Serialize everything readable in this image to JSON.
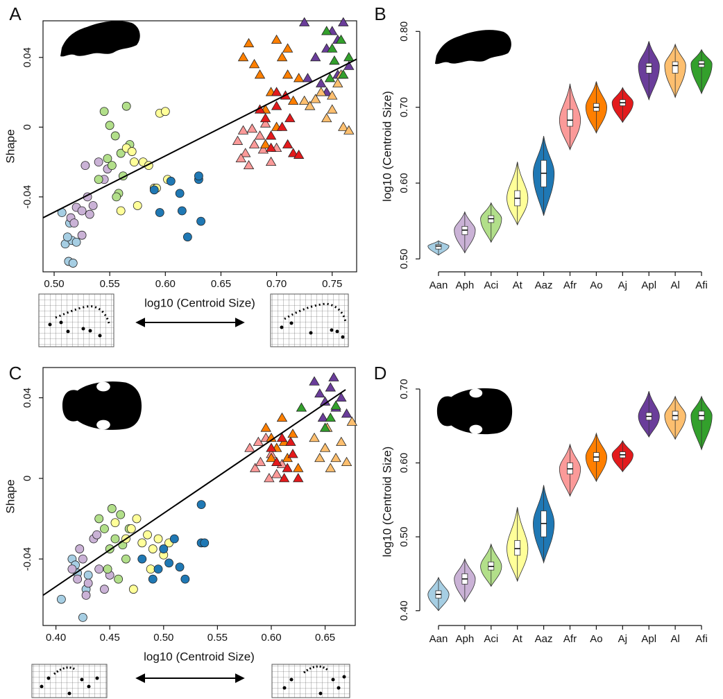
{
  "chart_data": [
    {
      "type": "scatter",
      "label": "A",
      "x_label": "log10 (Centroid Size)",
      "y_label": "Shape",
      "xlim": [
        0.49,
        0.772
      ],
      "ylim": [
        -0.083,
        0.061
      ],
      "xticks": [
        {
          "value": 0.5,
          "label": "0.50"
        },
        {
          "value": 0.55,
          "label": "0.55"
        },
        {
          "value": 0.6,
          "label": "0.60"
        },
        {
          "value": 0.65,
          "label": "0.65"
        },
        {
          "value": 0.7,
          "label": "0.70"
        },
        {
          "value": 0.75,
          "label": "0.75"
        }
      ],
      "yticks": [
        -0.04,
        0,
        0.04
      ],
      "trend_line": {
        "x": [
          0.49,
          0.772
        ],
        "y": [
          -0.052,
          0.039
        ]
      },
      "series": [
        {
          "color": "#a6cee3",
          "marker": "circle",
          "x": [
            0.507,
            0.51,
            0.514,
            0.516,
            0.513,
            0.517,
            0.52,
            0.512
          ],
          "y": [
            -0.049,
            -0.067,
            -0.055,
            -0.065,
            -0.077,
            -0.078,
            -0.066,
            -0.063
          ]
        },
        {
          "color": "#cab2d6",
          "marker": "circle",
          "x": [
            0.515,
            0.52,
            0.525,
            0.528,
            0.53,
            0.535,
            0.54,
            0.545,
            0.525,
            0.518,
            0.532,
            0.548
          ],
          "y": [
            -0.052,
            -0.046,
            -0.048,
            -0.022,
            -0.04,
            -0.045,
            -0.02,
            -0.03,
            -0.062,
            -0.055,
            -0.05,
            -0.024
          ]
        },
        {
          "color": "#b2df8a",
          "marker": "circle",
          "x": [
            0.545,
            0.55,
            0.555,
            0.56,
            0.565,
            0.548,
            0.552,
            0.558,
            0.54,
            0.556,
            0.568,
            0.562
          ],
          "y": [
            0.009,
            0.001,
            -0.005,
            -0.015,
            0.012,
            -0.018,
            -0.022,
            -0.038,
            -0.03,
            -0.04,
            -0.01,
            -0.028
          ]
        },
        {
          "color": "#ffff99",
          "marker": "circle",
          "x": [
            0.565,
            0.57,
            0.572,
            0.58,
            0.585,
            0.59,
            0.595,
            0.6,
            0.602,
            0.56,
            0.575,
            0.592
          ],
          "y": [
            -0.012,
            -0.014,
            -0.02,
            -0.02,
            -0.022,
            -0.035,
            0.008,
            0.009,
            -0.03,
            -0.048,
            -0.045,
            -0.035
          ]
        },
        {
          "color": "#1f78b4",
          "marker": "circle",
          "x": [
            0.59,
            0.595,
            0.605,
            0.613,
            0.62,
            0.63,
            0.63,
            0.632,
            0.615
          ],
          "y": [
            -0.036,
            -0.049,
            -0.031,
            -0.038,
            -0.063,
            -0.03,
            -0.028,
            -0.054,
            -0.048
          ]
        },
        {
          "color": "#fb9a99",
          "marker": "triangle",
          "x": [
            0.665,
            0.67,
            0.672,
            0.675,
            0.68,
            0.685,
            0.69,
            0.668,
            0.678,
            0.688,
            0.695,
            0.7
          ],
          "y": [
            -0.008,
            -0.002,
            -0.015,
            -0.022,
            -0.01,
            -0.005,
            0.002,
            -0.018,
            -0.001,
            -0.013,
            -0.02,
            -0.012
          ]
        },
        {
          "color": "#ff7f00",
          "marker": "triangle",
          "x": [
            0.67,
            0.675,
            0.68,
            0.685,
            0.69,
            0.695,
            0.7,
            0.705,
            0.71,
            0.715,
            0.72,
            0.69,
            0.7,
            0.71
          ],
          "y": [
            0.04,
            0.048,
            0.036,
            0.03,
            0.01,
            0.02,
            0.05,
            0.04,
            0.03,
            0.015,
            0.028,
            -0.01,
            0.0,
            0.045
          ]
        },
        {
          "color": "#e31a1c",
          "marker": "triangle",
          "x": [
            0.685,
            0.69,
            0.695,
            0.7,
            0.705,
            0.71,
            0.715,
            0.7,
            0.708,
            0.695,
            0.712,
            0.72
          ],
          "y": [
            0.01,
            0.005,
            -0.005,
            0.012,
            0.0,
            -0.01,
            -0.015,
            0.02,
            0.018,
            -0.012,
            0.005,
            -0.016
          ]
        },
        {
          "color": "#6a3d9a",
          "marker": "triangle",
          "x": [
            0.725,
            0.735,
            0.74,
            0.745,
            0.75,
            0.755,
            0.76,
            0.765,
            0.745,
            0.755,
            0.728
          ],
          "y": [
            0.06,
            0.04,
            0.025,
            0.045,
            0.055,
            0.03,
            0.06,
            0.035,
            0.02,
            0.05,
            0.028
          ]
        },
        {
          "color": "#fdbf6f",
          "marker": "triangle",
          "x": [
            0.725,
            0.73,
            0.74,
            0.745,
            0.75,
            0.755,
            0.76,
            0.765,
            0.735,
            0.75,
            0.758
          ],
          "y": [
            0.015,
            0.012,
            0.02,
            0.005,
            0.01,
            0.025,
            0.0,
            -0.002,
            0.016,
            0.018,
            0.03
          ]
        },
        {
          "color": "#33a02c",
          "marker": "triangle",
          "x": [
            0.745,
            0.75,
            0.752,
            0.758,
            0.76,
            0.748,
            0.765
          ],
          "y": [
            0.055,
            0.045,
            0.038,
            0.05,
            0.03,
            0.028,
            0.04
          ]
        }
      ]
    },
    {
      "type": "violin",
      "label": "B",
      "y_label": "log10 (Centroid Size)",
      "ylim": [
        0.483,
        0.814
      ],
      "yticks": [
        {
          "value": 0.5,
          "label": "0.50"
        },
        {
          "value": 0.6,
          "label": "0.60"
        },
        {
          "value": 0.7,
          "label": "0.70"
        },
        {
          "value": 0.8,
          "label": "0.80"
        }
      ],
      "categories": [
        "Aan",
        "Aph",
        "Aci",
        "At",
        "Aaz",
        "Afr",
        "Ao",
        "Aj",
        "Apl",
        "Al",
        "Afi"
      ],
      "colors": [
        "#a6cee3",
        "#cab2d6",
        "#b2df8a",
        "#ffff99",
        "#1f78b4",
        "#fb9a99",
        "#ff7f00",
        "#e31a1c",
        "#6a3d9a",
        "#fdbf6f",
        "#33a02c"
      ],
      "medians": [
        0.517,
        0.538,
        0.553,
        0.58,
        0.613,
        0.683,
        0.7,
        0.706,
        0.754,
        0.755,
        0.757
      ],
      "q1": [
        0.513,
        0.532,
        0.548,
        0.57,
        0.595,
        0.675,
        0.695,
        0.702,
        0.745,
        0.745,
        0.753
      ],
      "q3": [
        0.519,
        0.543,
        0.557,
        0.59,
        0.63,
        0.697,
        0.705,
        0.71,
        0.758,
        0.76,
        0.761
      ],
      "mins": [
        0.505,
        0.508,
        0.522,
        0.545,
        0.557,
        0.644,
        0.666,
        0.68,
        0.71,
        0.713,
        0.718
      ],
      "maxs": [
        0.524,
        0.562,
        0.574,
        0.628,
        0.662,
        0.731,
        0.734,
        0.726,
        0.787,
        0.783,
        0.776
      ]
    },
    {
      "type": "scatter",
      "label": "C",
      "x_label": "log10 (Centroid Size)",
      "y_label": "Shape",
      "xlim": [
        0.388,
        0.678
      ],
      "ylim": [
        -0.073,
        0.055
      ],
      "xticks": [
        {
          "value": 0.4,
          "label": "0.40"
        },
        {
          "value": 0.45,
          "label": "0.45"
        },
        {
          "value": 0.5,
          "label": "0.50"
        },
        {
          "value": 0.55,
          "label": "0.55"
        },
        {
          "value": 0.6,
          "label": "0.60"
        },
        {
          "value": 0.65,
          "label": "0.65"
        }
      ],
      "yticks": [
        -0.04,
        0,
        0.04
      ],
      "trend_line": {
        "x": [
          0.388,
          0.669
        ],
        "y": [
          -0.058,
          0.044
        ]
      },
      "series": [
        {
          "color": "#a6cee3",
          "marker": "circle",
          "x": [
            0.405,
            0.415,
            0.42,
            0.425,
            0.43,
            0.418,
            0.428
          ],
          "y": [
            -0.06,
            -0.04,
            -0.047,
            -0.069,
            -0.048,
            -0.043,
            -0.055
          ]
        },
        {
          "color": "#cab2d6",
          "marker": "circle",
          "x": [
            0.415,
            0.42,
            0.425,
            0.43,
            0.435,
            0.44,
            0.445,
            0.428,
            0.438,
            0.45,
            0.422
          ],
          "y": [
            -0.045,
            -0.05,
            -0.04,
            -0.052,
            -0.03,
            -0.045,
            -0.055,
            -0.058,
            -0.028,
            -0.048,
            -0.035
          ]
        },
        {
          "color": "#b2df8a",
          "marker": "circle",
          "x": [
            0.44,
            0.445,
            0.45,
            0.455,
            0.46,
            0.465,
            0.448,
            0.458,
            0.468,
            0.452,
            0.462
          ],
          "y": [
            -0.02,
            -0.025,
            -0.035,
            -0.03,
            -0.018,
            -0.04,
            -0.045,
            -0.05,
            -0.025,
            -0.015,
            -0.033
          ]
        },
        {
          "color": "#ffff99",
          "marker": "circle",
          "x": [
            0.455,
            0.465,
            0.47,
            0.475,
            0.48,
            0.485,
            0.49,
            0.495,
            0.5,
            0.505,
            0.472,
            0.488
          ],
          "y": [
            -0.022,
            -0.03,
            -0.025,
            -0.02,
            -0.032,
            -0.028,
            -0.035,
            -0.03,
            -0.038,
            -0.032,
            -0.055,
            -0.045
          ]
        },
        {
          "color": "#1f78b4",
          "marker": "circle",
          "x": [
            0.48,
            0.49,
            0.495,
            0.5,
            0.505,
            0.51,
            0.515,
            0.52,
            0.535,
            0.538,
            0.535
          ],
          "y": [
            -0.04,
            -0.05,
            -0.045,
            -0.035,
            -0.042,
            -0.03,
            -0.044,
            -0.05,
            -0.032,
            -0.032,
            -0.013
          ]
        },
        {
          "color": "#fb9a99",
          "marker": "triangle",
          "x": [
            0.58,
            0.585,
            0.59,
            0.595,
            0.6,
            0.605,
            0.588,
            0.598,
            0.61
          ],
          "y": [
            0.015,
            0.005,
            0.008,
            0.02,
            0.012,
            0.002,
            0.018,
            0.0,
            0.007
          ]
        },
        {
          "color": "#ff7f00",
          "marker": "triangle",
          "x": [
            0.595,
            0.6,
            0.605,
            0.61,
            0.615,
            0.62,
            0.625,
            0.6,
            0.612
          ],
          "y": [
            0.025,
            0.02,
            0.015,
            0.03,
            0.01,
            0.022,
            0.005,
            0.01,
            0.018
          ]
        },
        {
          "color": "#e31a1c",
          "marker": "triangle",
          "x": [
            0.6,
            0.605,
            0.61,
            0.615,
            0.62,
            0.625,
            0.612,
            0.618
          ],
          "y": [
            0.015,
            0.008,
            0.02,
            0.005,
            0.012,
            0.0,
            0.0,
            0.018
          ]
        },
        {
          "color": "#6a3d9a",
          "marker": "triangle",
          "x": [
            0.64,
            0.645,
            0.65,
            0.655,
            0.66,
            0.665,
            0.67,
            0.648,
            0.658
          ],
          "y": [
            0.048,
            0.042,
            0.038,
            0.045,
            0.035,
            0.04,
            0.032,
            0.03,
            0.05
          ]
        },
        {
          "color": "#fdbf6f",
          "marker": "triangle",
          "x": [
            0.64,
            0.645,
            0.65,
            0.655,
            0.66,
            0.665,
            0.67,
            0.675,
            0.652
          ],
          "y": [
            0.02,
            0.01,
            0.015,
            0.005,
            0.01,
            0.018,
            0.008,
            0.028,
            0.025
          ]
        },
        {
          "color": "#33a02c",
          "marker": "triangle",
          "x": [
            0.628,
            0.65,
            0.655,
            0.66
          ],
          "y": [
            0.035,
            0.025,
            0.03,
            0.036
          ]
        }
      ]
    },
    {
      "type": "violin",
      "label": "D",
      "y_label": "log10 (Centroid Size)",
      "ylim": [
        0.38,
        0.715
      ],
      "yticks": [
        {
          "value": 0.4,
          "label": "0.40"
        },
        {
          "value": 0.5,
          "label": "0.50"
        },
        {
          "value": 0.6,
          "label": "0.60"
        },
        {
          "value": 0.7,
          "label": "0.70"
        }
      ],
      "categories": [
        "Aan",
        "Aph",
        "Aci",
        "At",
        "Aaz",
        "Afr",
        "Ao",
        "Aj",
        "Apl",
        "Al",
        "Afi"
      ],
      "colors": [
        "#a6cee3",
        "#cab2d6",
        "#b2df8a",
        "#ffff99",
        "#1f78b4",
        "#fb9a99",
        "#ff7f00",
        "#e31a1c",
        "#6a3d9a",
        "#fdbf6f",
        "#33a02c"
      ],
      "medians": [
        0.422,
        0.443,
        0.46,
        0.484,
        0.518,
        0.592,
        0.608,
        0.611,
        0.663,
        0.664,
        0.664
      ],
      "q1": [
        0.417,
        0.436,
        0.455,
        0.475,
        0.5,
        0.585,
        0.602,
        0.607,
        0.658,
        0.658,
        0.658
      ],
      "q3": [
        0.427,
        0.45,
        0.466,
        0.495,
        0.535,
        0.6,
        0.614,
        0.615,
        0.668,
        0.67,
        0.67
      ],
      "mins": [
        0.4,
        0.412,
        0.433,
        0.44,
        0.465,
        0.555,
        0.575,
        0.588,
        0.635,
        0.632,
        0.618
      ],
      "maxs": [
        0.445,
        0.47,
        0.49,
        0.54,
        0.57,
        0.625,
        0.64,
        0.63,
        0.697,
        0.69,
        0.69
      ]
    }
  ]
}
